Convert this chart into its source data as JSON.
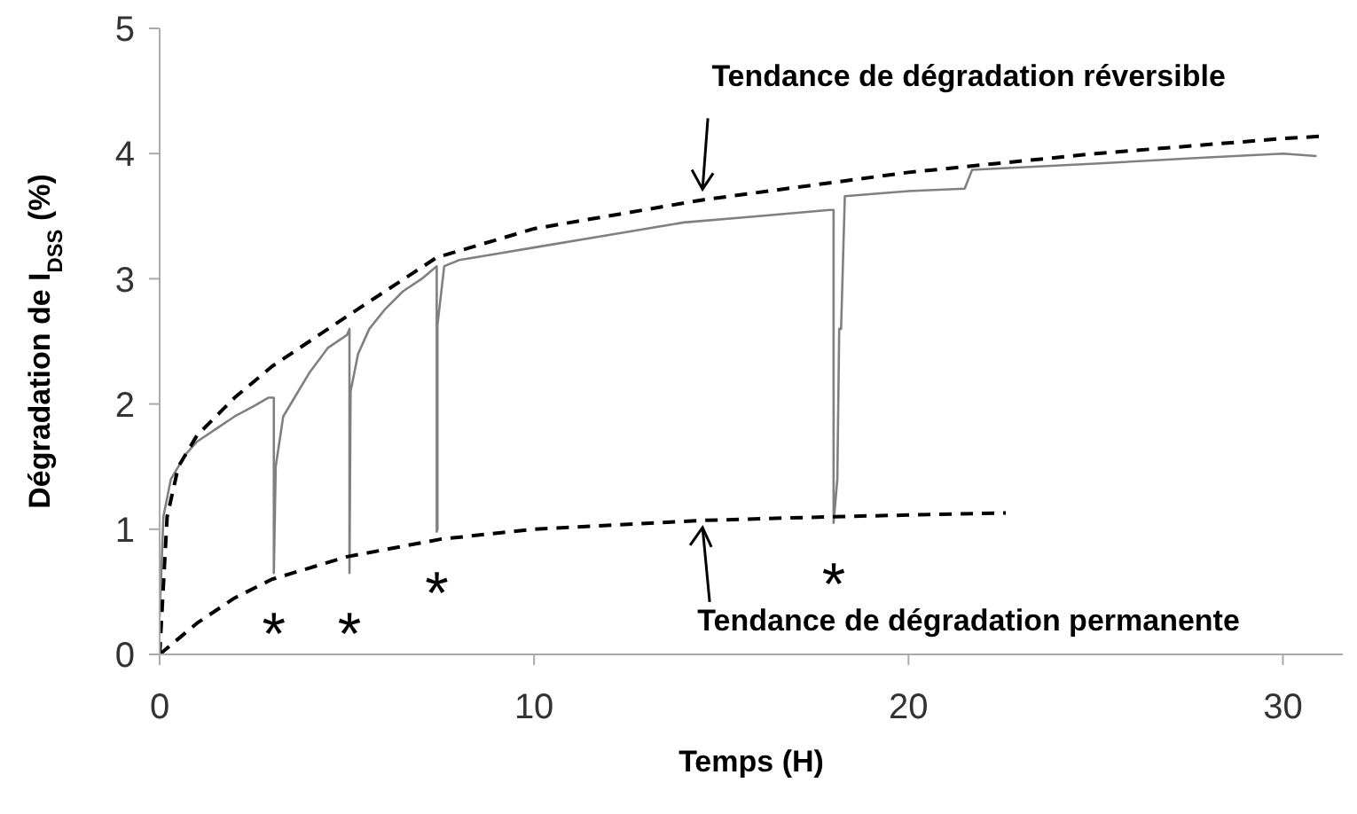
{
  "chart_data": {
    "type": "line",
    "xlabel": "Temps (H)",
    "ylabel": "Dégradation de I$_{DSS}$ (%)",
    "xlim": [
      0,
      31.6
    ],
    "xticks": [
      0,
      10,
      20,
      30
    ],
    "ylim": [
      0,
      5
    ],
    "yticks": [
      0,
      1,
      2,
      3,
      4,
      5
    ],
    "marker": "none",
    "series": [
      {
        "color": "#808080",
        "line_style": "solid",
        "x": [
          0,
          0.1,
          0.3,
          0.7,
          1,
          1.5,
          2,
          2.5,
          2.9,
          3.05,
          3.05,
          3.1,
          3.3,
          3.7,
          4,
          4.5,
          5,
          5.07,
          5.07,
          5.1,
          5.3,
          5.6,
          6,
          6.5,
          7,
          7.4,
          7.4,
          7.42,
          7.42,
          7.6,
          8,
          9,
          10,
          12,
          14,
          16,
          17.9,
          18,
          18,
          18.1,
          18.15,
          18.2,
          18.3,
          20,
          21.5,
          21.7,
          25,
          28,
          30,
          30.9
        ],
        "values": [
          0.3,
          1.1,
          1.4,
          1.6,
          1.7,
          1.8,
          1.9,
          1.98,
          2.05,
          2.05,
          0.65,
          1.5,
          1.9,
          2.1,
          2.25,
          2.45,
          2.55,
          2.6,
          0.65,
          2.1,
          2.4,
          2.6,
          2.75,
          2.9,
          3.0,
          3.1,
          0.98,
          1.0,
          2.63,
          3.1,
          3.15,
          3.2,
          3.25,
          3.35,
          3.45,
          3.5,
          3.55,
          3.55,
          1.05,
          1.4,
          2.6,
          2.6,
          3.66,
          3.7,
          3.72,
          3.87,
          3.92,
          3.97,
          4.0,
          3.98
        ]
      },
      {
        "color": "#000000",
        "line_style": "dashed",
        "x": [
          0,
          0.2,
          0.5,
          1,
          2,
          3,
          5,
          7.4,
          10,
          14.5,
          20,
          25,
          30,
          31.1
        ],
        "values": [
          0,
          1.1,
          1.5,
          1.75,
          2.05,
          2.3,
          2.7,
          3.17,
          3.4,
          3.63,
          3.85,
          4.0,
          4.12,
          4.14
        ]
      },
      {
        "color": "#000000",
        "line_style": "dashed",
        "x": [
          0,
          1,
          2,
          3,
          5,
          7.5,
          10,
          14.5,
          18,
          22.6
        ],
        "values": [
          0,
          0.25,
          0.45,
          0.6,
          0.78,
          0.92,
          1.0,
          1.07,
          1.1,
          1.13
        ]
      }
    ],
    "annotations": [
      {
        "text": "Tendance de dégradation réversible",
        "x": 14.5,
        "y": 3.63
      },
      {
        "text": "Tendance de dégradation permanente",
        "x": 14.5,
        "y": 1.07
      },
      {
        "text": "*",
        "x": 3.05,
        "y": 0.65
      },
      {
        "text": "*",
        "x": 5.07,
        "y": 0.65
      },
      {
        "text": "*",
        "x": 7.4,
        "y": 0.98
      },
      {
        "text": "*",
        "x": 18.0,
        "y": 1.05
      }
    ]
  }
}
